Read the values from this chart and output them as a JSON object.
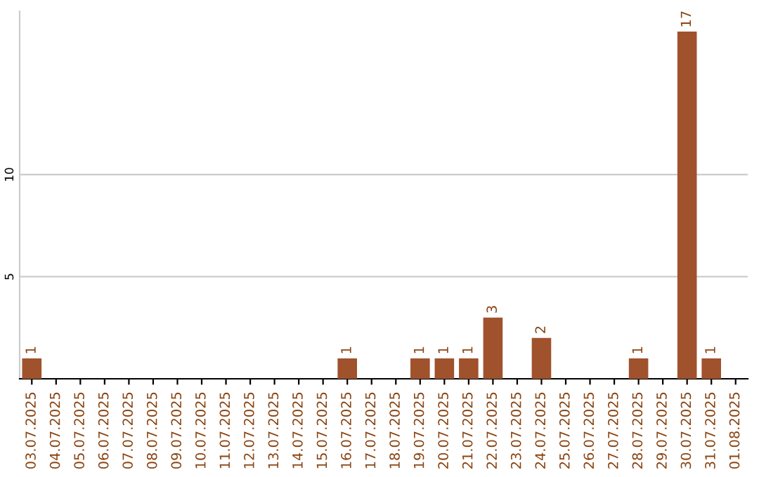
{
  "chart_data": {
    "type": "bar",
    "categories": [
      "03.07.2025",
      "04.07.2025",
      "05.07.2025",
      "06.07.2025",
      "07.07.2025",
      "08.07.2025",
      "09.07.2025",
      "10.07.2025",
      "11.07.2025",
      "12.07.2025",
      "13.07.2025",
      "14.07.2025",
      "15.07.2025",
      "16.07.2025",
      "17.07.2025",
      "18.07.2025",
      "19.07.2025",
      "20.07.2025",
      "21.07.2025",
      "22.07.2025",
      "23.07.2025",
      "24.07.2025",
      "25.07.2025",
      "26.07.2025",
      "27.07.2025",
      "28.07.2025",
      "29.07.2025",
      "30.07.2025",
      "31.07.2025",
      "01.08.2025"
    ],
    "values": [
      1,
      0,
      0,
      0,
      0,
      0,
      0,
      0,
      0,
      0,
      0,
      0,
      0,
      1,
      0,
      0,
      1,
      1,
      1,
      3,
      0,
      2,
      0,
      0,
      0,
      1,
      0,
      17,
      1,
      0
    ],
    "value_labels": [
      "1",
      null,
      null,
      null,
      null,
      null,
      null,
      null,
      null,
      null,
      null,
      null,
      null,
      "1",
      null,
      null,
      "1",
      "1",
      "1",
      "3",
      null,
      "2",
      null,
      null,
      null,
      "1",
      null,
      "17",
      "1",
      null
    ],
    "color": "#a0522d",
    "ylim": [
      0,
      18
    ],
    "yticks": [
      5,
      10
    ],
    "grid": "y",
    "legend": false
  }
}
